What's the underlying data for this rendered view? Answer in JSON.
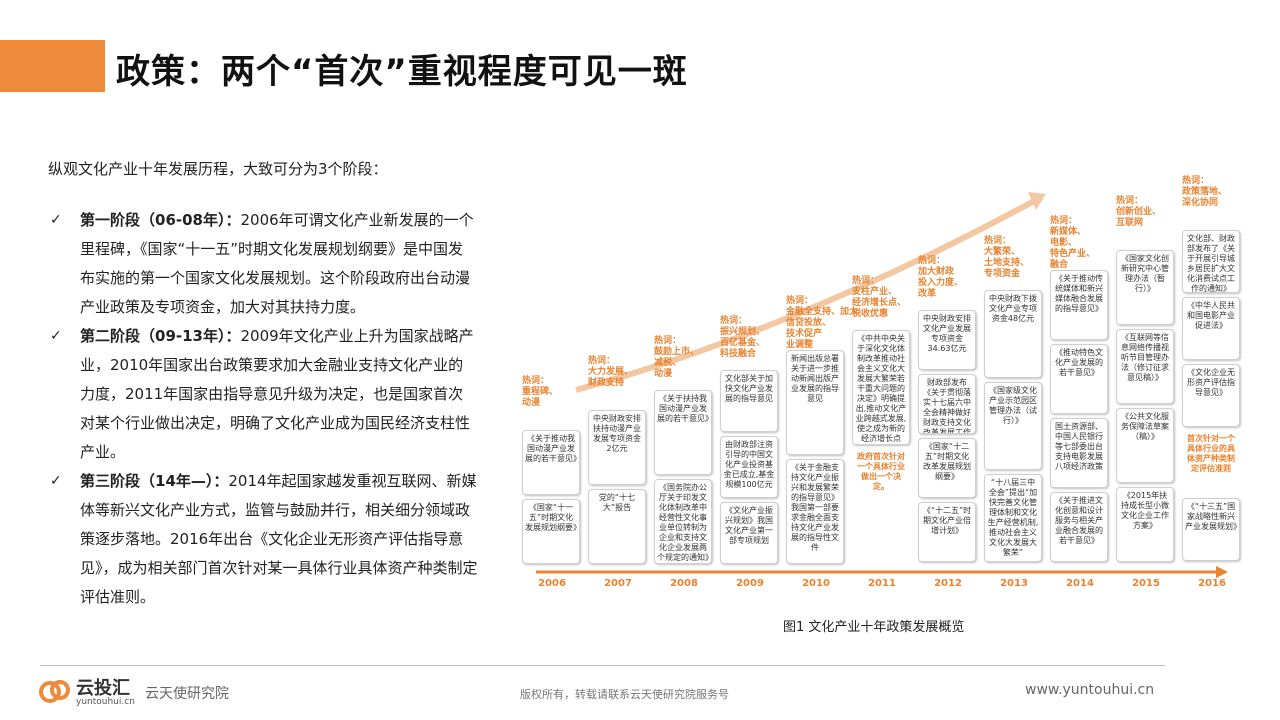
{
  "header": {
    "title": "政策：两个“首次”重视程度可见一斑"
  },
  "intro": "纵观文化产业十年发展历程，大致可分为3个阶段：",
  "stages": [
    {
      "check": "✓",
      "head": "第一阶段（06-08年）：",
      "text": "2006年可谓文化产业新发展的一个里程碑，《国家“十一五”时期文化发展规划纲要》是中国发布实施的第一个国家文化发展规划。这个阶段政府出台动漫产业政策及专项资金，加大对其扶持力度。"
    },
    {
      "check": "✓",
      "head": "第二阶段（09-13年）：",
      "text": "2009年文化产业上升为国家战略产业，2010年国家出台政策要求加大金融业支持文化产业的力度，2011年国家由指导意见升级为决定，也是国家首次对某个行业做出决定，明确了文化产业成为国民经济支柱性产业。"
    },
    {
      "check": "✓",
      "head": "第三阶段（14年—）：",
      "text": "2014年起国家越发重视互联网、新媒体等新兴文化产业方式，监管与鼓励并行，相关细分领域政策逐步落地。2016年出台《文化企业无形资产评估指导意见》，成为相关部门首次针对某一具体行业具体资产种类制定评估准则。"
    }
  ],
  "timeline": [
    {
      "year": "2006",
      "hot": "热词：\n重程碑、\n动漫",
      "items": [
        "《关于推动我国动漫产业发展的若干意见》",
        "《国家“十一五”时期文化发展规划纲要》"
      ]
    },
    {
      "year": "2007",
      "hot": "热词：\n大力发展、\n财政支持",
      "items": [
        "中央财政安排扶持动漫产业发展专项资金2亿元",
        "党的“十七大”报告"
      ]
    },
    {
      "year": "2008",
      "hot": "热词：\n鼓励上市、\n减税、\n动漫",
      "items": [
        "《关于扶持我国动漫产业发展的若干意见》",
        "《国务院办公厅关于印发文化体制改革中经营性文化事业单位转制为企业和支持文化企业发展两个规定的通知》"
      ]
    },
    {
      "year": "2009",
      "hot": "热词：\n振兴规划、\n百亿基金、\n科技融合",
      "items": [
        "文化部关于加快文化产业发展的指导意见",
        "由财政部注资引导的中国文化产业投资基金已成立,基金规模100亿元",
        "《文化产业振兴规划》我国文化产业第一部专项规划"
      ]
    },
    {
      "year": "2010",
      "hot": "热词：\n金融全支持、加大\n信贷投放、\n技术促产\n业调整",
      "items": [
        "新闻出版总署关于进一步推动新闻出版产业发展的指导意见",
        "《关于金融支持文化产业振兴和发展繁荣的指导意见》我国第一部要求金融全面支持文化产业发展的指导性文件"
      ]
    },
    {
      "year": "2011",
      "hot": "热词：\n支柱产业、\n经济增长点、\n税收优惠",
      "items": [
        "《中共中央关于深化文化体制改革推动社会主义文化大发展大繁荣若干重大问题的决定》明确提出,推动文化产业跨越式发展,使之成为新的经济增长点",
        "政府首次针对一个具体行业做出一个决定。"
      ]
    },
    {
      "year": "2012",
      "hot": "热词：\n加大财政\n投入力度、\n改革",
      "items": [
        "中央财政安排文化产业发展专项资金34.63亿元",
        "财政部发布《关于贯彻落实十七届六中全会精神做好财政支持文化改革发展工作的通知》",
        "《国家“十二五”时期文化改革发展规划纲要》",
        "《“十二五”时期文化产业倍增计划》"
      ]
    },
    {
      "year": "2013",
      "hot": "热词：\n大繁荣、\n土地支持、\n专项资金",
      "items": [
        "中央财政下拨文化产业专项资金48亿元",
        "《国家级文化产业示范园区管理办法（试行）》",
        "“十八届三中全会”提出“加快完善文化管理体制和文化生产经营机制,推动社会主义文化大发展大繁荣”"
      ]
    },
    {
      "year": "2014",
      "hot": "热词：\n新媒体、\n电影、\n特色产业、\n融合",
      "items": [
        "《关于推动传统媒体和新兴媒体融合发展的指导意见》",
        "《推动特色文化产业发展的若干意见》",
        "国土资源部、中国人民银行等七部委出台支持电影发展八项经济政策",
        "《关于推进文化创意和设计服务与相关产业融合发展的若干意见》"
      ]
    },
    {
      "year": "2015",
      "hot": "热词：\n创新创业、\n互联网",
      "items": [
        "《国家文化创新研究中心管理办法（暂行）》",
        "《互联网等信息网络传播视听节目管理办法（修订征求意见稿）》",
        "《公共文化服务保障法草案（稿）》",
        "《2015年扶持成长型小微文化企业工作方案》"
      ]
    },
    {
      "year": "2016",
      "hot": "热词：\n政策落地、\n深化协同",
      "items": [
        "文化部、财政部发布了《关于开展引导城乡居民扩大文化消费试点工作的通知》",
        "《中华人民共和国电影产业促进法》",
        "《文化企业无形资产评估指导意见》",
        "首次针对一个具体行业的具体资产种类制定评估准则",
        "《“十三五”国家战略性新兴产业发展规划》"
      ]
    }
  ],
  "caption": "图1  文化产业十年政策发展概览",
  "footer": {
    "logo_cn": "云投汇",
    "logo_en": "yuntouhui.cn",
    "org": "云天使研究院",
    "rights": "版权所有，转载请联系云天使研究院服务号",
    "site": "www.yuntouhui.cn"
  },
  "colors": {
    "accent": "#ef8a3a",
    "hot": "#e8832f"
  }
}
